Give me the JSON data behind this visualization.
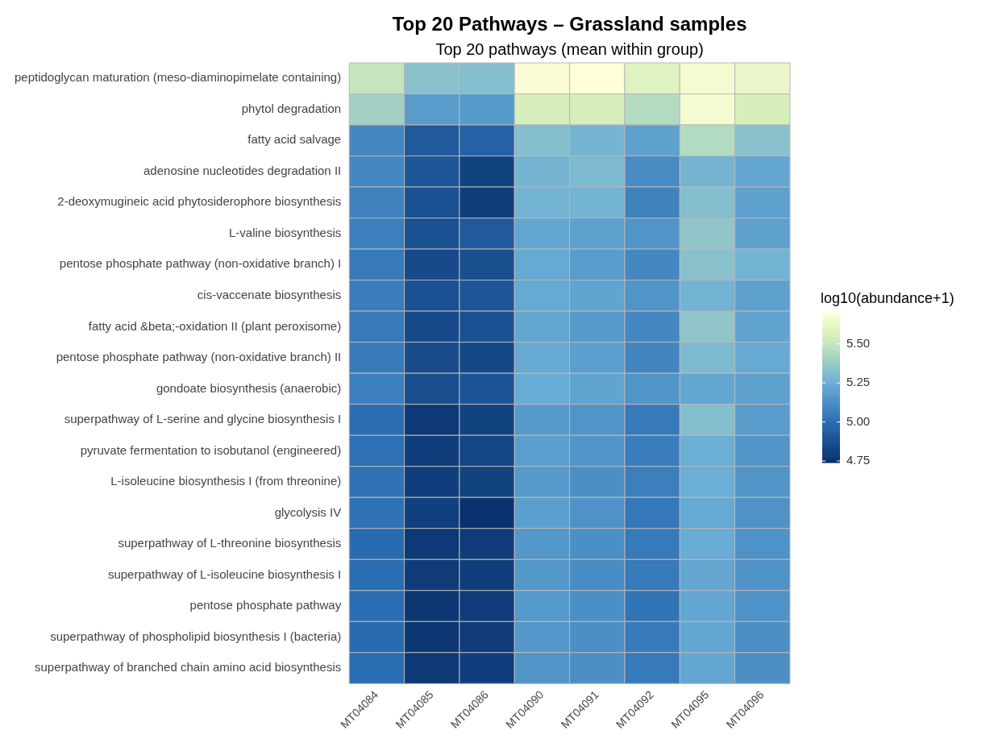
{
  "chart_data": {
    "type": "heatmap",
    "title": "Top 20 Pathways – Grassland samples",
    "subtitle": "Top 20 pathways (mean within group)",
    "clabel": "log10(abundance+1)",
    "categories": [
      "MT04084",
      "MT04085",
      "MT04086",
      "MT04090",
      "MT04091",
      "MT04092",
      "MT04095",
      "MT04096"
    ],
    "y_categories": [
      "peptidoglycan maturation (meso-diaminopimelate containing)",
      "phytol degradation",
      "fatty acid salvage",
      "adenosine nucleotides degradation II",
      "2-deoxymugineic acid phytosiderophore biosynthesis",
      "L-valine biosynthesis",
      "pentose phosphate pathway (non-oxidative branch) I",
      "cis-vaccenate biosynthesis",
      "fatty acid &beta;-oxidation II (plant peroxisome)",
      "pentose phosphate pathway (non-oxidative branch) II",
      "gondoate biosynthesis (anaerobic)",
      "superpathway of L-serine and glycine biosynthesis I",
      "pyruvate fermentation to isobutanol (engineered)",
      "L-isoleucine biosynthesis I (from threonine)",
      "glycolysis IV",
      "superpathway of L-threonine biosynthesis",
      "superpathway of L-isoleucine biosynthesis I",
      "pentose phosphate pathway",
      "superpathway of phospholipid biosynthesis I (bacteria)",
      "superpathway of branched chain amino acid biosynthesis"
    ],
    "cells": [
      [
        5.5,
        5.33,
        5.32,
        5.68,
        5.7,
        5.58,
        5.66,
        5.62
      ],
      [
        5.4,
        5.18,
        5.17,
        5.55,
        5.55,
        5.45,
        5.66,
        5.55
      ],
      [
        5.1,
        4.92,
        4.95,
        5.32,
        5.28,
        5.2,
        5.45,
        5.33
      ],
      [
        5.1,
        4.9,
        4.82,
        5.28,
        5.3,
        5.12,
        5.28,
        5.22
      ],
      [
        5.08,
        4.88,
        4.8,
        5.27,
        5.27,
        5.08,
        5.32,
        5.2
      ],
      [
        5.07,
        4.88,
        4.92,
        5.22,
        5.2,
        5.15,
        5.35,
        5.2
      ],
      [
        5.05,
        4.85,
        4.87,
        5.23,
        5.18,
        5.1,
        5.33,
        5.27
      ],
      [
        5.06,
        4.88,
        4.9,
        5.23,
        5.21,
        5.15,
        5.27,
        5.2
      ],
      [
        5.05,
        4.85,
        4.88,
        5.22,
        5.17,
        5.1,
        5.35,
        5.21
      ],
      [
        5.05,
        4.86,
        4.84,
        5.23,
        5.19,
        5.09,
        5.3,
        5.23
      ],
      [
        5.07,
        4.87,
        4.89,
        5.24,
        5.21,
        5.15,
        5.22,
        5.2
      ],
      [
        5.0,
        4.78,
        4.82,
        5.17,
        5.15,
        5.05,
        5.32,
        5.18
      ],
      [
        5.01,
        4.8,
        4.83,
        5.19,
        5.15,
        5.06,
        5.25,
        5.15
      ],
      [
        5.02,
        4.8,
        4.82,
        5.17,
        5.13,
        5.07,
        5.25,
        5.15
      ],
      [
        5.02,
        4.81,
        4.75,
        5.19,
        5.14,
        5.04,
        5.23,
        5.14
      ],
      [
        4.99,
        4.78,
        4.79,
        5.16,
        5.13,
        5.05,
        5.24,
        5.14
      ],
      [
        5.0,
        4.79,
        4.8,
        5.16,
        5.12,
        5.05,
        5.22,
        5.14
      ],
      [
        5.0,
        4.77,
        4.79,
        5.17,
        5.13,
        5.03,
        5.22,
        5.14
      ],
      [
        4.99,
        4.77,
        4.79,
        5.16,
        5.13,
        5.05,
        5.22,
        5.13
      ],
      [
        5.0,
        4.78,
        4.8,
        5.15,
        5.13,
        5.05,
        5.22,
        5.13
      ]
    ],
    "clim": [
      4.74,
      5.7
    ],
    "cticks": [
      {
        "value": 4.75,
        "label": "4.75"
      },
      {
        "value": 5.0,
        "label": "5.00"
      },
      {
        "value": 5.25,
        "label": "5.25"
      },
      {
        "value": 5.5,
        "label": "5.50"
      }
    ]
  }
}
